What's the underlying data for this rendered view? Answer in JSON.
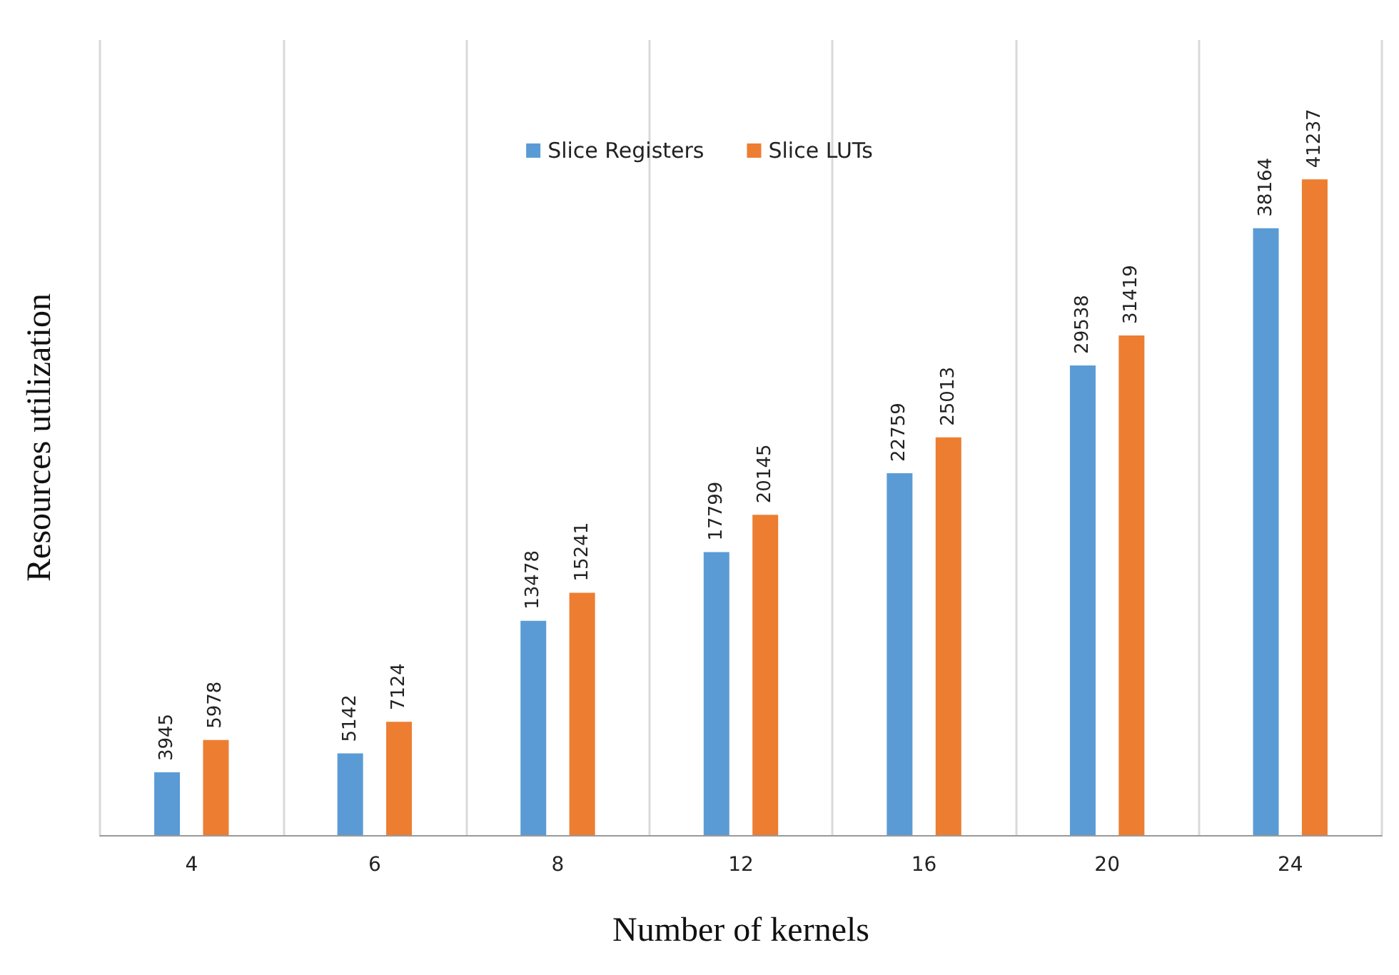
{
  "chart_data": {
    "type": "bar",
    "xlabel": "Number of kernels",
    "ylabel": "Resources utilization",
    "categories": [
      "4",
      "6",
      "8",
      "12",
      "16",
      "20",
      "24"
    ],
    "series": [
      {
        "name": "Slice Registers",
        "color": "#5b9bd5",
        "values": [
          3945,
          5142,
          13478,
          17799,
          22759,
          29538,
          38164
        ]
      },
      {
        "name": "Slice LUTs",
        "color": "#ed7d31",
        "values": [
          5978,
          7124,
          15241,
          20145,
          25013,
          31419,
          41237
        ]
      }
    ],
    "data_labels": true,
    "grid": "x",
    "legend": "top",
    "tick_labels": "x"
  }
}
